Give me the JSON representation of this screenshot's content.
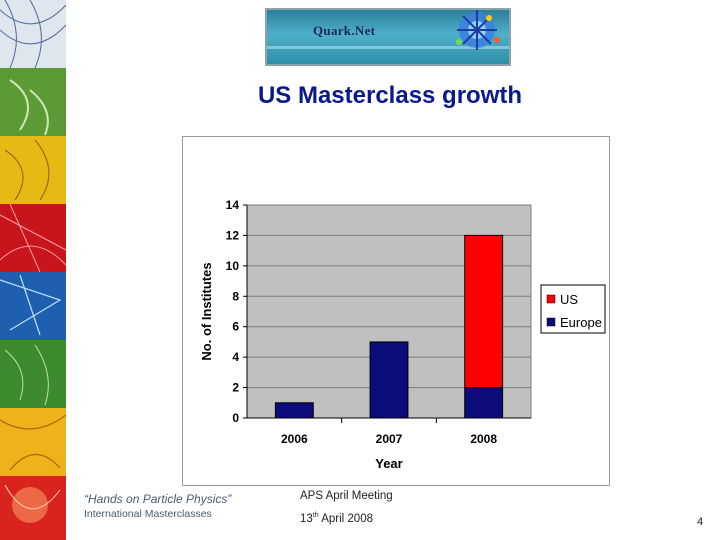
{
  "banner": {
    "logo_text": "Quark.Net"
  },
  "slide": {
    "title": "US Masterclass growth",
    "page_number": "4"
  },
  "footer": {
    "tagline": "“Hands on Particle Physics”",
    "subtitle": "International Masterclasses",
    "meeting": "APS April Meeting",
    "date_day": "13",
    "date_suffix": "th",
    "date_rest": " April 2008"
  },
  "chart_data": {
    "type": "bar",
    "stacked": true,
    "categories": [
      "2006",
      "2007",
      "2008"
    ],
    "series": [
      {
        "name": "Europe",
        "values": [
          1,
          5,
          2
        ],
        "color": "#0b0b7a"
      },
      {
        "name": "US",
        "values": [
          0,
          0,
          10
        ],
        "color": "#ff0000"
      }
    ],
    "xlabel": "Year",
    "ylabel": "No. of Institutes",
    "ylim": [
      0,
      14
    ],
    "yticks": [
      "0",
      "2",
      "4",
      "6",
      "8",
      "10",
      "12",
      "14"
    ],
    "grid": true,
    "plot_background": "#c0c0c0",
    "legend": "right"
  }
}
